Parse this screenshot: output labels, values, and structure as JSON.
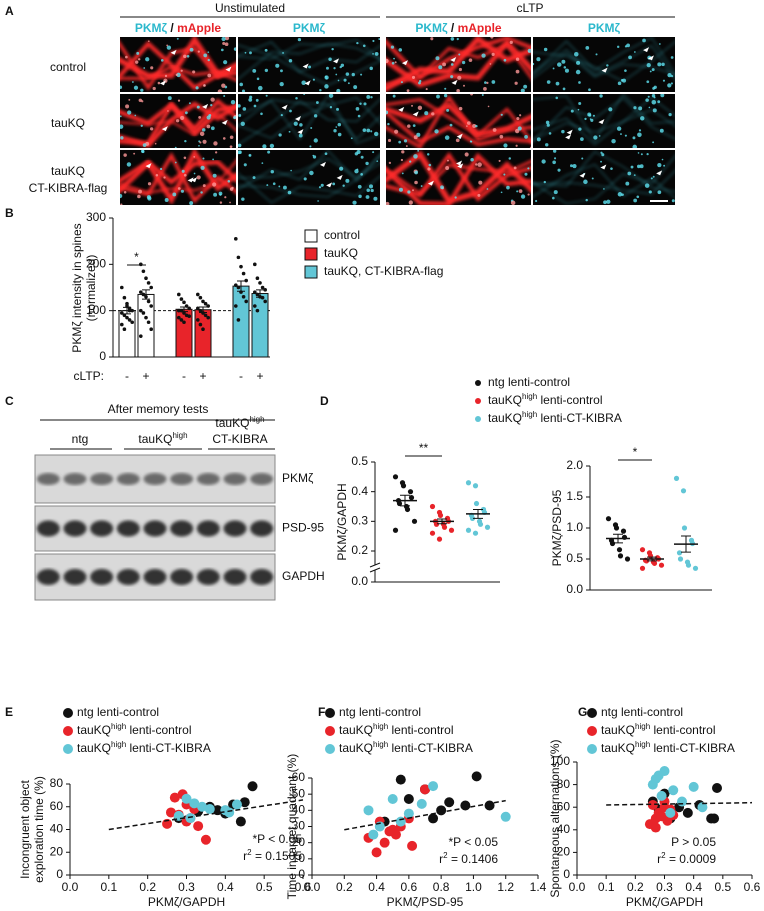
{
  "panel_labels": [
    "A",
    "B",
    "C",
    "D",
    "E",
    "F",
    "G"
  ],
  "panel_a": {
    "conditions": [
      "Unstimulated",
      "cLTP"
    ],
    "columns": [
      [
        {
          "text": "PKMζ",
          "color": "#2bb8cc"
        },
        {
          "text": " / ",
          "color": "#111111"
        },
        {
          "text": "mApple",
          "color": "#e8242a"
        }
      ],
      [
        {
          "text": "PKMζ",
          "color": "#2bb8cc"
        }
      ]
    ],
    "rows": [
      [
        "control"
      ],
      [
        "tauKQ"
      ],
      [
        "tauKQ",
        "CT-KIBRA-flag"
      ]
    ]
  },
  "panel_c": {
    "title": "After memory tests",
    "groups": [
      [
        [
          "ntg"
        ]
      ],
      [
        [
          "tauKQ",
          "high"
        ]
      ],
      [
        [
          "tauKQ",
          "high"
        ],
        [
          "CT-KIBRA"
        ]
      ]
    ],
    "bands": [
      "PKMζ",
      "PSD-95",
      "GAPDH"
    ]
  },
  "chart_data": [
    {
      "type": "bar",
      "ylabel": [
        "PKMζ intensity in spines",
        "(normalized)"
      ],
      "xlabel": "cLTP:",
      "categories": [
        "-",
        "+"
      ],
      "ylim": [
        0,
        300
      ],
      "yticks": [
        0,
        100,
        200,
        300
      ],
      "reference_line": 100,
      "annotations": [
        "*"
      ],
      "series": [
        {
          "name": "control",
          "color": "#ffffff",
          "values": [
            100,
            135
          ],
          "errors": [
            7,
            10
          ],
          "points": [
            [
              150,
              128,
              115,
              105,
              100,
              95,
              90,
              85,
              80,
              75,
              70,
              60,
              110,
              100
            ],
            [
              200,
              185,
              170,
              160,
              150,
              140,
              135,
              130,
              120,
              110,
              100,
              95,
              85,
              75,
              60,
              45
            ]
          ]
        },
        {
          "name": "tauKQ",
          "color": "#e8242a",
          "values": [
            103,
            102
          ],
          "errors": [
            5,
            6
          ],
          "points": [
            [
              135,
              125,
              118,
              110,
              105,
              100,
              100,
              95,
              90,
              88,
              85,
              80,
              75
            ],
            [
              135,
              128,
              120,
              115,
              110,
              105,
              100,
              95,
              90,
              85,
              80,
              70,
              60
            ]
          ]
        },
        {
          "name": "tauKQ, CT-KIBRA-flag",
          "color": "#62c6d6",
          "values": [
            153,
            137
          ],
          "errors": [
            11,
            8
          ],
          "points": [
            [
              255,
              215,
              195,
              180,
              165,
              155,
              150,
              140,
              130,
              120,
              110,
              80
            ],
            [
              200,
              170,
              160,
              150,
              145,
              140,
              135,
              130,
              128,
              120,
              110,
              100
            ]
          ]
        }
      ]
    },
    {
      "type": "strip",
      "ylabel": "PKMζ/GAPDH",
      "ylim": [
        0,
        0.5
      ],
      "axis_break": [
        0,
        0.2
      ],
      "yticks": [
        {
          "value": 0,
          "label": "0.0"
        },
        0.2,
        0.3,
        0.4,
        0.5
      ],
      "annotations": [
        "**"
      ],
      "series": [
        {
          "name": [
            "ntg lenti-control"
          ],
          "color": "#111111",
          "values": [
            0.45,
            0.43,
            0.42,
            0.4,
            0.38,
            0.37,
            0.36,
            0.35,
            0.34,
            0.3,
            0.27
          ],
          "mean": 0.37,
          "sem": 0.018
        },
        {
          "name": [
            "tauKQ",
            "high",
            " lenti-control"
          ],
          "color": "#e8242a",
          "values": [
            0.35,
            0.33,
            0.32,
            0.31,
            0.3,
            0.3,
            0.29,
            0.29,
            0.28,
            0.27,
            0.26,
            0.24
          ],
          "mean": 0.3,
          "sem": 0.008
        },
        {
          "name": [
            "tauKQ",
            "high",
            " lenti-CT-KIBRA"
          ],
          "color": "#62c6d6",
          "values": [
            0.43,
            0.42,
            0.36,
            0.34,
            0.33,
            0.32,
            0.31,
            0.3,
            0.29,
            0.28,
            0.27,
            0.26
          ],
          "mean": 0.325,
          "sem": 0.015
        }
      ]
    },
    {
      "type": "strip",
      "ylabel": "PKMζ/PSD-95",
      "ylim": [
        0,
        2
      ],
      "yticks": [
        {
          "value": 0,
          "label": "0.0"
        },
        0.5,
        {
          "value": 1,
          "label": "1.0"
        },
        1.5,
        {
          "value": 2,
          "label": "2.0"
        }
      ],
      "annotations": [
        "*"
      ],
      "series": [
        {
          "color": "#111111",
          "values": [
            1.15,
            1.05,
            1.0,
            0.95,
            0.85,
            0.8,
            0.75,
            0.65,
            0.55,
            0.5
          ],
          "mean": 0.83,
          "sem": 0.07
        },
        {
          "color": "#e8242a",
          "values": [
            0.65,
            0.6,
            0.55,
            0.52,
            0.5,
            0.48,
            0.47,
            0.45,
            0.43,
            0.4,
            0.35
          ],
          "mean": 0.5,
          "sem": 0.03
        },
        {
          "color": "#62c6d6",
          "values": [
            1.8,
            1.6,
            1.0,
            0.8,
            0.75,
            0.6,
            0.5,
            0.45,
            0.4,
            0.35
          ],
          "mean": 0.74,
          "sem": 0.13
        }
      ]
    },
    {
      "type": "scatter",
      "xlabel": "PKMζ/GAPDH",
      "ylabel": [
        "Incongruent object",
        "exploration time (%)"
      ],
      "xlim": [
        0,
        0.6
      ],
      "xticks": [
        {
          "value": 0,
          "label": "0.0"
        },
        0.1,
        0.2,
        0.3,
        0.4,
        0.5,
        0.6
      ],
      "ylim": [
        0,
        80
      ],
      "yticks": [
        0,
        20,
        40,
        60,
        80
      ],
      "trendline": {
        "x": [
          0.1,
          0.6
        ],
        "y": [
          40,
          66
        ]
      },
      "annotations": [
        [
          "*P < 0.05"
        ],
        [
          "r",
          "2",
          " = 0.1505"
        ]
      ],
      "series": [
        {
          "name": [
            "ntg lenti-control"
          ],
          "color": "#111111",
          "x": [
            0.47,
            0.45,
            0.42,
            0.38,
            0.36,
            0.33,
            0.3,
            0.4,
            0.44,
            0.28
          ],
          "y": [
            78,
            64,
            62,
            57,
            60,
            56,
            48,
            54,
            47,
            50
          ]
        },
        {
          "name": [
            "tauKQ",
            "high",
            " lenti-control"
          ],
          "color": "#e8242a",
          "x": [
            0.29,
            0.27,
            0.3,
            0.32,
            0.26,
            0.28,
            0.31,
            0.3,
            0.33,
            0.25,
            0.35
          ],
          "y": [
            71,
            68,
            62,
            58,
            55,
            53,
            50,
            47,
            43,
            45,
            31
          ]
        },
        {
          "name": [
            "tauKQ",
            "high",
            " lenti-CT-KIBRA"
          ],
          "color": "#62c6d6",
          "x": [
            0.3,
            0.32,
            0.34,
            0.36,
            0.41,
            0.43,
            0.28,
            0.31,
            0.4
          ],
          "y": [
            67,
            63,
            60,
            58,
            55,
            62,
            52,
            50,
            57
          ]
        }
      ]
    },
    {
      "type": "scatter",
      "xlabel": "PKMζ/PSD-95",
      "ylabel": [
        "Time in target quadrant (%)"
      ],
      "xlim": [
        0,
        1.4
      ],
      "xticks": [
        {
          "value": 0,
          "label": "0.0"
        },
        0.2,
        0.4,
        0.6,
        0.8,
        {
          "value": 1,
          "label": "1.0"
        },
        1.2,
        1.4
      ],
      "ylim": [
        0,
        60
      ],
      "yticks": [
        0,
        10,
        20,
        30,
        40,
        50,
        60
      ],
      "trendline": {
        "x": [
          0.2,
          1.2
        ],
        "y": [
          28,
          46
        ]
      },
      "annotations": [
        [
          "*P < 0.05"
        ],
        [
          "r",
          "2",
          " = 0.1406"
        ]
      ],
      "series": [
        {
          "name": [
            "ntg lenti-control"
          ],
          "color": "#111111",
          "x": [
            0.55,
            0.7,
            1.02,
            0.85,
            0.95,
            0.6,
            0.75,
            1.1,
            0.45,
            0.8
          ],
          "y": [
            59,
            53,
            61,
            45,
            43,
            47,
            35,
            43,
            33,
            40
          ]
        },
        {
          "name": [
            "tauKQ",
            "high",
            " lenti-control"
          ],
          "color": "#e8242a",
          "x": [
            0.4,
            0.45,
            0.5,
            0.55,
            0.52,
            0.6,
            0.48,
            0.35,
            0.62,
            0.42,
            0.7
          ],
          "y": [
            14,
            20,
            28,
            30,
            25,
            35,
            27,
            23,
            18,
            33,
            53
          ]
        },
        {
          "name": [
            "tauKQ",
            "high",
            " lenti-CT-KIBRA"
          ],
          "color": "#62c6d6",
          "x": [
            0.35,
            0.42,
            0.5,
            0.68,
            0.75,
            1.2,
            0.6,
            0.38,
            0.55
          ],
          "y": [
            40,
            30,
            47,
            44,
            55,
            36,
            38,
            25,
            33
          ]
        }
      ]
    },
    {
      "type": "scatter",
      "xlabel": "PKMζ/GAPDH",
      "ylabel": [
        "Spontaneous alternations (%)"
      ],
      "xlim": [
        0,
        0.6
      ],
      "xticks": [
        {
          "value": 0,
          "label": "0.0"
        },
        0.1,
        0.2,
        0.3,
        0.4,
        0.5,
        0.6
      ],
      "ylim": [
        0,
        100
      ],
      "yticks": [
        0,
        20,
        40,
        60,
        80,
        100
      ],
      "trendline": {
        "x": [
          0.1,
          0.6
        ],
        "y": [
          62,
          64
        ]
      },
      "annotations": [
        [
          "P > 0.05"
        ],
        [
          "r",
          "2",
          " = 0.0009"
        ]
      ],
      "series": [
        {
          "name": [
            "ntg lenti-control"
          ],
          "color": "#111111",
          "x": [
            0.48,
            0.46,
            0.3,
            0.35,
            0.28,
            0.42,
            0.38,
            0.32,
            0.26,
            0.47
          ],
          "y": [
            77,
            50,
            72,
            60,
            58,
            62,
            55,
            50,
            65,
            50
          ]
        },
        {
          "name": [
            "tauKQ",
            "high",
            " lenti-control"
          ],
          "color": "#e8242a",
          "x": [
            0.25,
            0.27,
            0.28,
            0.3,
            0.29,
            0.31,
            0.26,
            0.32,
            0.33,
            0.27,
            0.3
          ],
          "y": [
            45,
            50,
            55,
            60,
            52,
            48,
            62,
            58,
            53,
            42,
            65
          ]
        },
        {
          "name": [
            "tauKQ",
            "high",
            " lenti-CT-KIBRA"
          ],
          "color": "#62c6d6",
          "x": [
            0.3,
            0.28,
            0.26,
            0.33,
            0.4,
            0.43,
            0.36,
            0.29,
            0.32,
            0.27
          ],
          "y": [
            92,
            88,
            80,
            75,
            78,
            60,
            65,
            70,
            55,
            85
          ]
        }
      ]
    }
  ]
}
